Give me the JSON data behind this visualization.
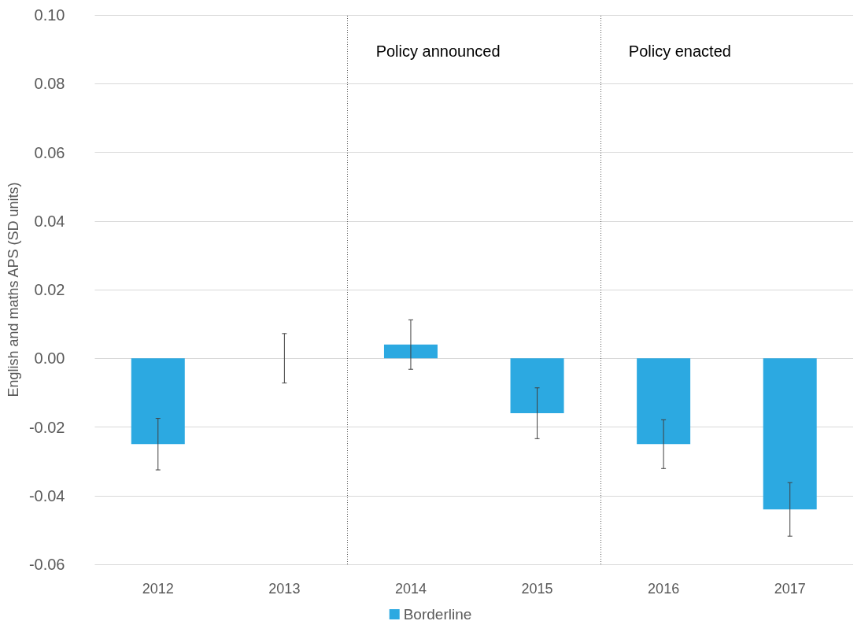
{
  "chart_data": {
    "type": "bar",
    "ylabel": "English and maths APS (SD units)",
    "x": [
      2012,
      2013,
      2014,
      2015,
      2016,
      2017
    ],
    "xlim": [
      2011.5,
      2017.5
    ],
    "xticks": [
      2012,
      2013,
      2014,
      2015,
      2016,
      2017
    ],
    "series": [
      {
        "name": "Borderline",
        "color": "#2ca9e1",
        "values": [
          -0.025,
          0.0,
          0.004,
          -0.016,
          -0.025,
          -0.044
        ],
        "errors": [
          0.0075,
          0.0072,
          0.0072,
          0.0074,
          0.0071,
          0.0078
        ]
      }
    ],
    "ylim": [
      -0.06,
      0.1
    ],
    "yticks": [
      {
        "value": -0.06,
        "label": "-0.06"
      },
      {
        "value": -0.04,
        "label": "-0.04"
      },
      {
        "value": -0.02,
        "label": "-0.02"
      },
      {
        "value": 0,
        "label": "0.00"
      },
      {
        "value": 0.02,
        "label": "0.02"
      },
      {
        "value": 0.04,
        "label": "0.04"
      },
      {
        "value": 0.06,
        "label": "0.06"
      },
      {
        "value": 0.08,
        "label": "0.08"
      },
      {
        "value": 0.1,
        "label": "0.10"
      }
    ],
    "ref_lines": [
      {
        "axis": "x",
        "value": 2013.5,
        "label": "Policy announced",
        "color": "#595959",
        "line_style": "dotted"
      },
      {
        "axis": "x",
        "value": 2015.5,
        "label": "Policy enacted",
        "color": "#595959",
        "line_style": "dotted"
      }
    ],
    "grid": "y",
    "legend": "bottom"
  }
}
